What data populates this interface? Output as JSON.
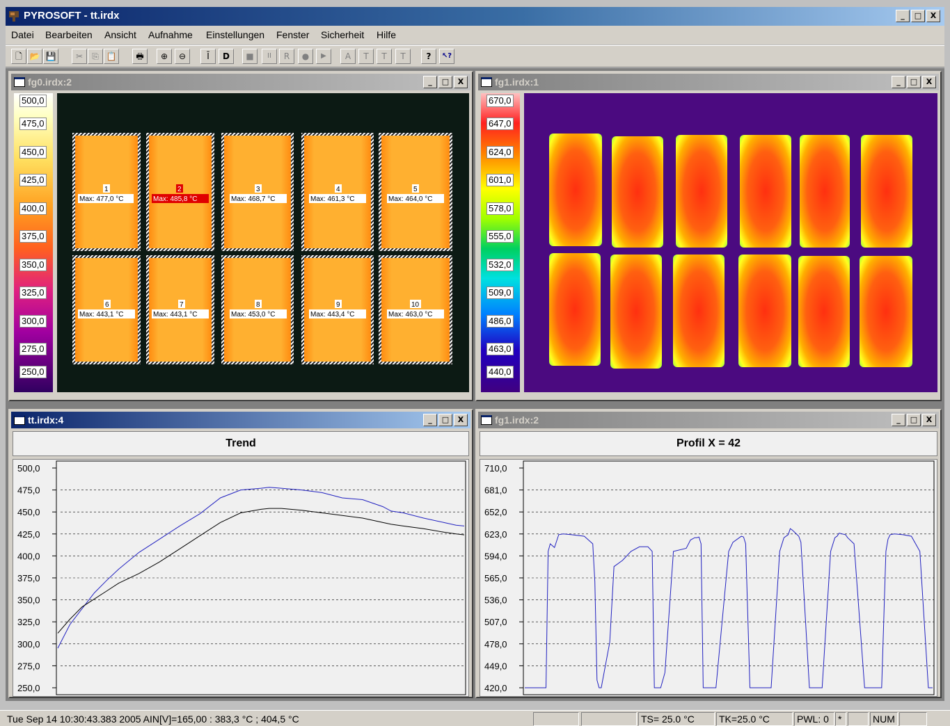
{
  "app": {
    "title": "PYROSOFT - tt.irdx",
    "win_minimize": "_",
    "win_maximize": "□",
    "win_close": "X"
  },
  "menu": [
    "Datei",
    "Bearbeiten",
    "Ansicht",
    "Aufnahme",
    "Einstellungen",
    "Fenster",
    "Sicherheit",
    "Hilfe"
  ],
  "toolbar": {
    "buttons": [
      {
        "name": "new-icon",
        "glyph": "🗋"
      },
      {
        "name": "open-icon",
        "glyph": "📂"
      },
      {
        "name": "save-icon",
        "glyph": "💾"
      },
      {
        "name": "cut-icon",
        "glyph": "✂"
      },
      {
        "name": "copy-icon",
        "glyph": "⎘"
      },
      {
        "name": "paste-icon",
        "glyph": "📋"
      },
      {
        "name": "print-icon",
        "glyph": "🖶"
      },
      {
        "name": "zoom-in-icon",
        "glyph": "⊕"
      },
      {
        "name": "zoom-out-icon",
        "glyph": "⊖"
      },
      {
        "name": "insert-icon",
        "glyph": "Ī"
      },
      {
        "name": "d-button-icon",
        "glyph": "D"
      },
      {
        "name": "stop-icon",
        "glyph": "■"
      },
      {
        "name": "pause-icon",
        "glyph": "II"
      },
      {
        "name": "record-r-icon",
        "glyph": "R"
      },
      {
        "name": "record-icon",
        "glyph": "●"
      },
      {
        "name": "play-icon",
        "glyph": "▶"
      },
      {
        "name": "a-icon",
        "glyph": "A"
      },
      {
        "name": "t-icon",
        "glyph": "T"
      },
      {
        "name": "t-sub-icon",
        "glyph": "T"
      },
      {
        "name": "t-o-icon",
        "glyph": "T"
      },
      {
        "name": "help-icon",
        "glyph": "?"
      },
      {
        "name": "context-help-icon",
        "glyph": "↖?"
      }
    ]
  },
  "windows": {
    "fg0": {
      "title": "fg0.irdx:2",
      "scale": [
        "500,0",
        "475,0",
        "450,0",
        "425,0",
        "400,0",
        "375,0",
        "350,0",
        "325,0",
        "300,0",
        "275,0",
        "250,0"
      ],
      "measurements": [
        {
          "id": "1",
          "label": "Max:  477,0 °C"
        },
        {
          "id": "2",
          "label": "Max:  485,8 °C"
        },
        {
          "id": "3",
          "label": "Max:  468,7 °C"
        },
        {
          "id": "4",
          "label": "Max:  461,3 °C"
        },
        {
          "id": "5",
          "label": "Max:  464,0 °C"
        },
        {
          "id": "6",
          "label": "Max:  443,1 °C"
        },
        {
          "id": "7",
          "label": "Max:  443,1 °C"
        },
        {
          "id": "8",
          "label": "Max:  453,0 °C"
        },
        {
          "id": "9",
          "label": "Max:  443,4 °C"
        },
        {
          "id": "10",
          "label": "Max:  463,0 °C"
        }
      ]
    },
    "fg1": {
      "title": "fg1.irdx:1",
      "scale": [
        "670,0",
        "647,0",
        "624,0",
        "601,0",
        "578,0",
        "555,0",
        "532,0",
        "509,0",
        "486,0",
        "463,0",
        "440,0"
      ]
    },
    "trend": {
      "title": "tt.irdx:4",
      "heading": "Trend"
    },
    "profile": {
      "title": "fg1.irdx:2",
      "heading": "Profil X = 42"
    }
  },
  "chart_data": [
    {
      "type": "line",
      "title": "Trend",
      "ylim": [
        250,
        500
      ],
      "yticks": [
        "500,0",
        "475,0",
        "450,0",
        "425,0",
        "400,0",
        "375,0",
        "350,0",
        "325,0",
        "300,0",
        "275,0",
        "250,0"
      ],
      "grid": true,
      "x": [
        0,
        3,
        6,
        9,
        12,
        15,
        20,
        25,
        30,
        35,
        40,
        45,
        50,
        52,
        55,
        60,
        65,
        70,
        75,
        80,
        82,
        85,
        90,
        95,
        98,
        100
      ],
      "series": [
        {
          "color": "#2020c0",
          "values": [
            295,
            322,
            340,
            358,
            372,
            385,
            404,
            419,
            434,
            448,
            466,
            475,
            477,
            478,
            477,
            475,
            472,
            466,
            464,
            456,
            451,
            449,
            443,
            438,
            435,
            434
          ]
        },
        {
          "color": "#000000",
          "values": [
            312,
            328,
            342,
            351,
            360,
            369,
            380,
            393,
            408,
            423,
            438,
            449,
            453,
            454,
            454,
            452,
            449,
            446,
            443,
            438,
            436,
            434,
            431,
            427,
            425,
            424
          ]
        }
      ]
    },
    {
      "type": "line",
      "title": "Profil X = 42",
      "ylim": [
        420,
        710
      ],
      "yticks": [
        "710,0",
        "681,0",
        "652,0",
        "623,0",
        "594,0",
        "565,0",
        "536,0",
        "507,0",
        "478,0",
        "449,0",
        "420,0"
      ],
      "grid": true,
      "x": [
        0,
        5,
        5.5,
        6,
        7,
        8,
        9,
        11,
        14,
        16,
        16.5,
        17,
        17.5,
        18,
        20,
        21,
        23,
        25,
        27,
        29,
        30,
        30.5,
        31,
        32,
        33,
        35,
        38,
        39,
        40,
        40.5,
        41,
        41.5,
        42,
        44,
        45,
        48,
        49,
        50.5,
        51,
        51.5,
        52,
        53,
        55,
        58,
        60,
        61,
        62,
        62.5,
        63,
        64.5,
        65,
        67,
        69,
        70,
        72,
        73,
        73.5,
        74,
        75.5,
        76,
        77.5,
        80,
        82,
        84,
        85,
        85.5,
        86,
        87,
        89,
        91,
        93,
        95,
        96
      ],
      "series": [
        {
          "color": "#2020c0",
          "values": [
            420,
            420,
            600,
            610,
            605,
            622,
            623,
            622,
            620,
            610,
            560,
            430,
            420,
            420,
            480,
            580,
            588,
            600,
            606,
            606,
            600,
            420,
            420,
            420,
            440,
            600,
            604,
            615,
            618,
            618,
            619,
            610,
            420,
            420,
            420,
            600,
            612,
            618,
            620,
            619,
            610,
            420,
            420,
            420,
            600,
            618,
            622,
            630,
            628,
            620,
            612,
            420,
            420,
            420,
            600,
            618,
            620,
            624,
            622,
            618,
            610,
            420,
            420,
            420,
            600,
            616,
            622,
            623,
            622,
            620,
            600,
            420,
            420
          ]
        }
      ]
    }
  ],
  "status": {
    "main": "Tue Sep 14 10:30:43.383 2005 AIN[V]=165,00  : 383,3 °C ; 404,5 °C",
    "ts": "TS= 25.0 °C",
    "tk": "TK=25.0 °C",
    "pwl": "PWL: 0",
    "star": "*",
    "num": "NUM"
  }
}
